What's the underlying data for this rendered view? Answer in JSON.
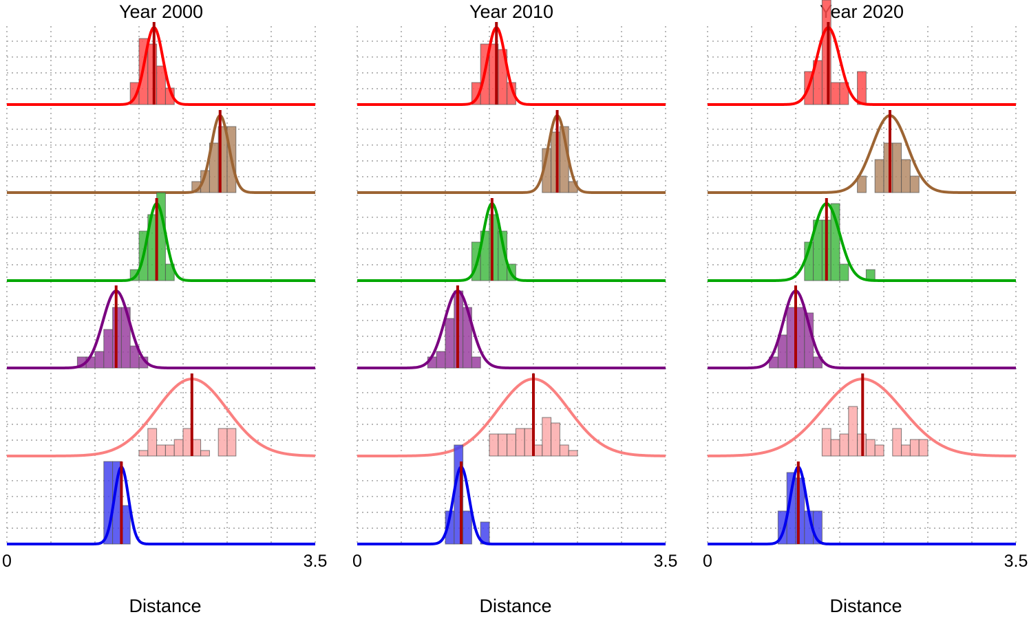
{
  "chart_data": {
    "type": "histogram",
    "xlabel": "Distance",
    "xlim": [
      0,
      3.5
    ],
    "x_tick_labels": [
      "0",
      "3.5"
    ],
    "bin_width": 0.1,
    "grid": true,
    "series_colors": [
      {
        "line": "#ff0000",
        "fill": "#ff4d4d"
      },
      {
        "line": "#9c6433",
        "fill": "#b48a66"
      },
      {
        "line": "#00a800",
        "fill": "#44bb44"
      },
      {
        "line": "#7a0080",
        "fill": "#9a40a0"
      },
      {
        "line": "#fa8080",
        "fill": "#fcaaaa"
      },
      {
        "line": "#0000ee",
        "fill": "#4444ee"
      }
    ],
    "mean_line_color": "#aa0000",
    "panels": [
      {
        "title": "Year 2000",
        "rows": [
          {
            "mean": 1.67,
            "sd": 0.1,
            "bins": [
              [
                1.4,
                0.2
              ],
              [
                1.5,
                0.6
              ],
              [
                1.6,
                0.55
              ],
              [
                1.7,
                0.35
              ],
              [
                1.8,
                0.15
              ]
            ]
          },
          {
            "mean": 2.42,
            "sd": 0.1,
            "bins": [
              [
                2.1,
                0.1
              ],
              [
                2.2,
                0.2
              ],
              [
                2.3,
                0.45
              ],
              [
                2.4,
                0.6
              ],
              [
                2.5,
                0.6
              ]
            ]
          },
          {
            "mean": 1.7,
            "sd": 0.1,
            "bins": [
              [
                1.4,
                0.1
              ],
              [
                1.5,
                0.45
              ],
              [
                1.6,
                0.6
              ],
              [
                1.7,
                0.8
              ],
              [
                1.8,
                0.15
              ]
            ]
          },
          {
            "mean": 1.24,
            "sd": 0.15,
            "bins": [
              [
                0.8,
                0.1
              ],
              [
                0.9,
                0.1
              ],
              [
                1.0,
                0.15
              ],
              [
                1.1,
                0.35
              ],
              [
                1.2,
                0.55
              ],
              [
                1.3,
                0.55
              ],
              [
                1.4,
                0.2
              ],
              [
                1.5,
                0.1
              ]
            ]
          },
          {
            "mean": 2.1,
            "sd": 0.4,
            "bins": [
              [
                1.5,
                0.05
              ],
              [
                1.6,
                0.25
              ],
              [
                1.7,
                0.1
              ],
              [
                1.8,
                0.1
              ],
              [
                1.9,
                0.15
              ],
              [
                2.0,
                0.25
              ],
              [
                2.1,
                0.15
              ],
              [
                2.2,
                0.05
              ],
              [
                2.4,
                0.25
              ],
              [
                2.5,
                0.25
              ]
            ]
          },
          {
            "mean": 1.3,
            "sd": 0.08,
            "bins": [
              [
                1.1,
                0.75
              ],
              [
                1.2,
                0.75
              ],
              [
                1.3,
                0.35
              ]
            ]
          }
        ]
      },
      {
        "title": "Year 2010",
        "rows": [
          {
            "mean": 1.58,
            "sd": 0.1,
            "bins": [
              [
                1.3,
                0.2
              ],
              [
                1.4,
                0.55
              ],
              [
                1.5,
                0.55
              ],
              [
                1.6,
                0.5
              ],
              [
                1.7,
                0.2
              ]
            ]
          },
          {
            "mean": 2.27,
            "sd": 0.1,
            "bins": [
              [
                2.1,
                0.4
              ],
              [
                2.2,
                0.55
              ],
              [
                2.3,
                0.6
              ],
              [
                2.4,
                0.1
              ]
            ]
          },
          {
            "mean": 1.53,
            "sd": 0.1,
            "bins": [
              [
                1.3,
                0.35
              ],
              [
                1.4,
                0.45
              ],
              [
                1.5,
                0.6
              ],
              [
                1.6,
                0.45
              ],
              [
                1.7,
                0.15
              ]
            ]
          },
          {
            "mean": 1.14,
            "sd": 0.15,
            "bins": [
              [
                0.8,
                0.1
              ],
              [
                0.9,
                0.15
              ],
              [
                1.0,
                0.45
              ],
              [
                1.1,
                0.7
              ],
              [
                1.2,
                0.55
              ],
              [
                1.3,
                0.1
              ]
            ]
          },
          {
            "mean": 2.0,
            "sd": 0.4,
            "bins": [
              [
                1.5,
                0.2
              ],
              [
                1.6,
                0.2
              ],
              [
                1.7,
                0.2
              ],
              [
                1.8,
                0.25
              ],
              [
                1.9,
                0.25
              ],
              [
                2.0,
                0.1
              ],
              [
                2.1,
                0.35
              ],
              [
                2.2,
                0.3
              ],
              [
                2.3,
                0.1
              ],
              [
                2.4,
                0.05
              ]
            ]
          },
          {
            "mean": 1.18,
            "sd": 0.09,
            "bins": [
              [
                1.0,
                0.3
              ],
              [
                1.1,
                0.9
              ],
              [
                1.2,
                0.3
              ],
              [
                1.4,
                0.2
              ]
            ]
          }
        ]
      },
      {
        "title": "Year 2020",
        "rows": [
          {
            "mean": 1.37,
            "sd": 0.13,
            "bins": [
              [
                1.1,
                0.3
              ],
              [
                1.2,
                0.4
              ],
              [
                1.3,
                0.95
              ],
              [
                1.4,
                0.2
              ],
              [
                1.5,
                0.2
              ],
              [
                1.7,
                0.3
              ]
            ]
          },
          {
            "mean": 2.07,
            "sd": 0.2,
            "bins": [
              [
                1.7,
                0.15
              ],
              [
                1.9,
                0.3
              ],
              [
                2.0,
                0.45
              ],
              [
                2.1,
                0.45
              ],
              [
                2.2,
                0.3
              ],
              [
                2.3,
                0.15
              ]
            ]
          },
          {
            "mean": 1.35,
            "sd": 0.15,
            "bins": [
              [
                1.1,
                0.35
              ],
              [
                1.2,
                0.55
              ],
              [
                1.3,
                0.55
              ],
              [
                1.4,
                0.7
              ],
              [
                1.5,
                0.15
              ],
              [
                1.8,
                0.1
              ]
            ]
          },
          {
            "mean": 1.0,
            "sd": 0.14,
            "bins": [
              [
                0.7,
                0.1
              ],
              [
                0.8,
                0.3
              ],
              [
                0.9,
                0.55
              ],
              [
                1.0,
                0.55
              ],
              [
                1.1,
                0.5
              ],
              [
                1.2,
                0.1
              ]
            ]
          },
          {
            "mean": 1.76,
            "sd": 0.45,
            "bins": [
              [
                1.3,
                0.25
              ],
              [
                1.4,
                0.15
              ],
              [
                1.5,
                0.2
              ],
              [
                1.6,
                0.45
              ],
              [
                1.7,
                0.2
              ],
              [
                1.8,
                0.15
              ],
              [
                1.9,
                0.1
              ],
              [
                2.1,
                0.25
              ],
              [
                2.2,
                0.1
              ],
              [
                2.3,
                0.15
              ],
              [
                2.4,
                0.15
              ]
            ]
          },
          {
            "mean": 1.03,
            "sd": 0.09,
            "bins": [
              [
                0.8,
                0.3
              ],
              [
                0.9,
                0.65
              ],
              [
                1.0,
                0.6
              ],
              [
                1.1,
                0.3
              ],
              [
                1.2,
                0.3
              ]
            ]
          }
        ]
      }
    ]
  }
}
